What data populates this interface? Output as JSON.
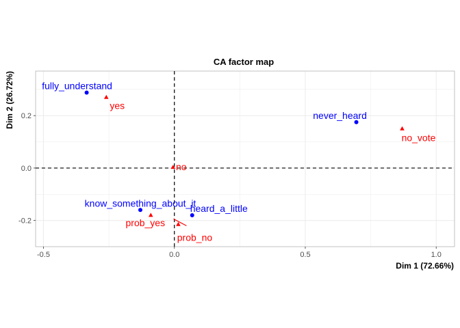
{
  "chart_data": {
    "type": "scatter",
    "title": "CA factor map",
    "xlabel": "Dim 1 (72.66%)",
    "ylabel": "Dim 2 (26.72%)",
    "xlim": [
      -0.53,
      1.07
    ],
    "ylim": [
      -0.3,
      0.37
    ],
    "x_ticks": [
      -0.5,
      0.0,
      0.5,
      1.0
    ],
    "x_tick_labels": [
      "-0.5",
      "0.0",
      "0.5",
      "1.0"
    ],
    "y_ticks": [
      -0.2,
      0.0,
      0.2
    ],
    "y_tick_labels": [
      "-0.2",
      "0.0",
      "0.2"
    ],
    "grid": true,
    "reference_lines": {
      "x": 0,
      "y": 0,
      "style": "dashed"
    },
    "colors": {
      "rows": "#0000ff",
      "columns": "#ff0000",
      "grid": "#ebebeb",
      "frame": "#b3b3b3"
    },
    "series": [
      {
        "marker": "circle",
        "color": "#0000ff",
        "points": [
          {
            "label": "fully_understand",
            "x": -0.335,
            "y": 0.288
          },
          {
            "label": "never_heard",
            "x": 0.695,
            "y": 0.175
          },
          {
            "label": "know_something_about_it",
            "x": -0.13,
            "y": -0.16
          },
          {
            "label": "heard_a_little",
            "x": 0.068,
            "y": -0.18
          }
        ]
      },
      {
        "marker": "triangle",
        "color": "#ff0000",
        "points": [
          {
            "label": "yes",
            "x": -0.26,
            "y": 0.27
          },
          {
            "label": "no_vote",
            "x": 0.87,
            "y": 0.15
          },
          {
            "label": "no",
            "x": -0.005,
            "y": 0.003
          },
          {
            "label": "prob_yes",
            "x": -0.09,
            "y": -0.18
          },
          {
            "label": "prob_no",
            "x": 0.015,
            "y": -0.215
          }
        ]
      }
    ]
  }
}
